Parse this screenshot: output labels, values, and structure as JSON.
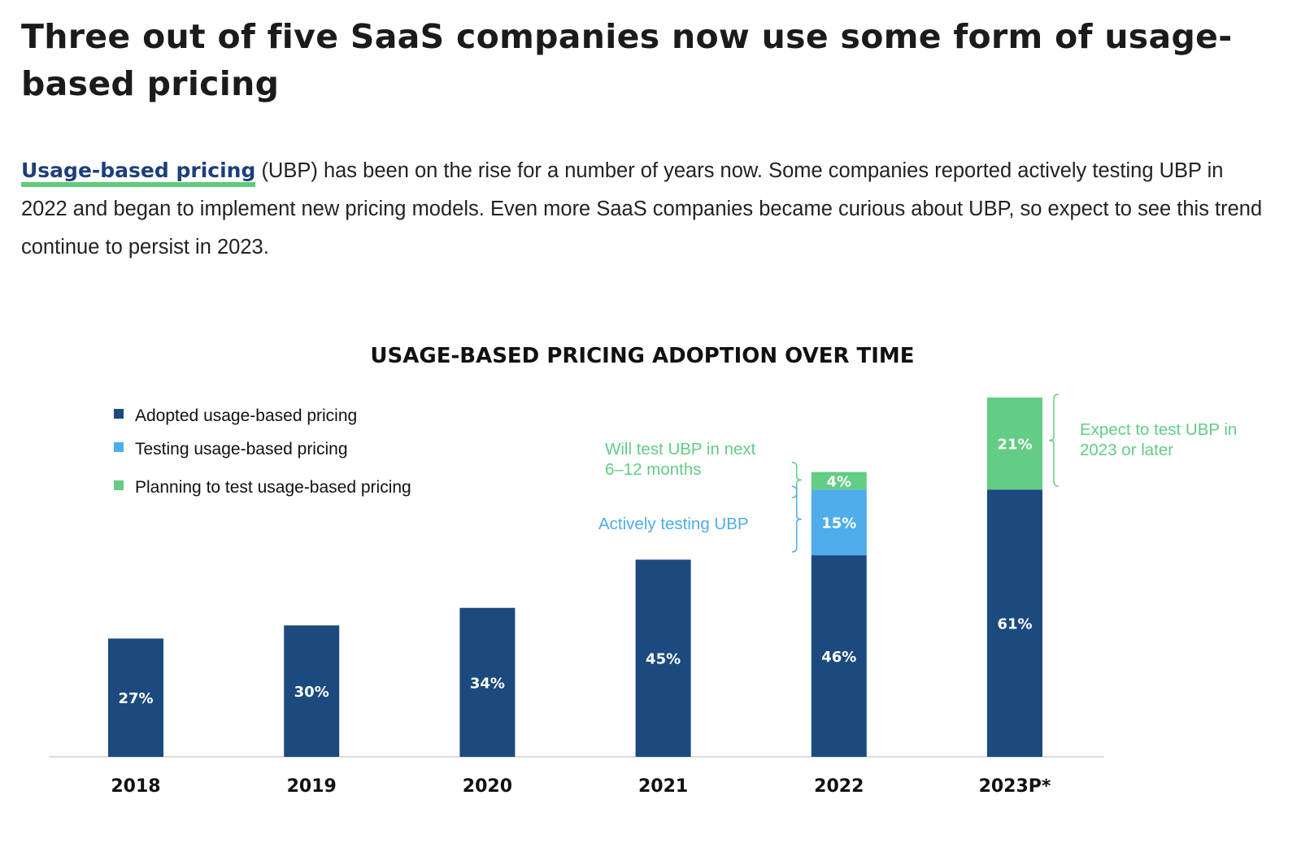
{
  "heading": "Three out of five SaaS companies now use some form of usage-based pricing",
  "intro": {
    "link_text": "Usage-based pricing",
    "text": " (UBP) has been on the rise for a number of years now. Some companies reported actively testing UBP in 2022 and began to implement new pricing models. Even more SaaS companies became curious about UBP, so expect to see this trend continue to persist in 2023."
  },
  "chart_data": {
    "type": "bar",
    "stacked": true,
    "title": "USAGE-BASED PRICING ADOPTION OVER TIME",
    "categories": [
      "2018",
      "2019",
      "2020",
      "2021",
      "2022",
      "2023P*"
    ],
    "series": [
      {
        "name": "Adopted usage-based pricing",
        "color": "#1c4a7e",
        "values": [
          27,
          30,
          34,
          45,
          46,
          61
        ]
      },
      {
        "name": "Testing usage-based pricing",
        "color": "#4eadea",
        "values": [
          0,
          0,
          0,
          0,
          15,
          0
        ]
      },
      {
        "name": "Planning to test usage-based pricing",
        "color": "#63cc85",
        "values": [
          0,
          0,
          0,
          0,
          4,
          21
        ]
      }
    ],
    "legend_position": "top-left",
    "grid": false,
    "ylim": [
      0,
      82
    ],
    "annotations": [
      {
        "text": "Will test UBP in next 6–12 months",
        "category": "2022",
        "series": "Planning to test usage-based pricing",
        "color": "#63cc85"
      },
      {
        "text": "Actively testing UBP",
        "category": "2022",
        "series": "Testing usage-based pricing",
        "color": "#4eadea"
      },
      {
        "text": "Expect to test UBP in 2023 or later",
        "category": "2023P*",
        "series": "Planning to test usage-based pricing",
        "color": "#63cc85"
      }
    ]
  }
}
